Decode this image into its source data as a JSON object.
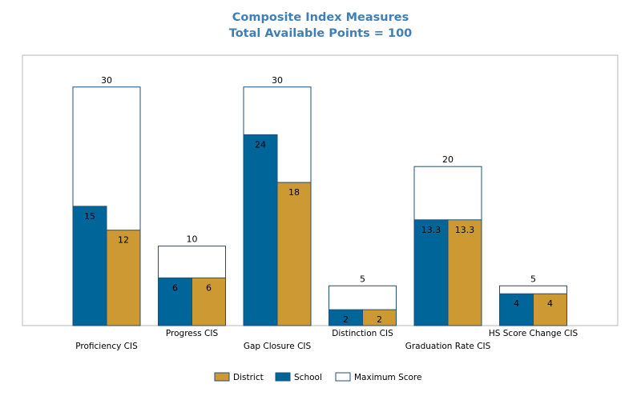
{
  "chart_data": {
    "type": "bar",
    "title": "Composite Index Measures",
    "subtitle": "Total Available Points = 100",
    "categories": [
      "Proficiency CIS",
      "Progress CIS",
      "Gap Closure CIS",
      "Distinction CIS",
      "Graduation Rate CIS",
      "HS Score Change CIS"
    ],
    "series": [
      {
        "name": "Maximum Score",
        "values": [
          30,
          10,
          30,
          5,
          20,
          5
        ],
        "value_labels": [
          "30",
          "10",
          "30",
          "5",
          "20",
          "5"
        ],
        "color": "#ffffff"
      },
      {
        "name": "School",
        "values": [
          15,
          6,
          24,
          2,
          13.3,
          4
        ],
        "value_labels": [
          "15",
          "6",
          "24",
          "2",
          "13.3",
          "4"
        ],
        "color": "#006699"
      },
      {
        "name": "District",
        "values": [
          12,
          6,
          18,
          2,
          13.3,
          4
        ],
        "value_labels": [
          "12",
          "6",
          "18",
          "2",
          "13.3",
          "4"
        ],
        "color": "#cc9933"
      }
    ],
    "ylim": [
      0,
      34
    ],
    "grid": false,
    "legend_position": "bottom",
    "legend_order": [
      "District",
      "School",
      "Maximum Score"
    ],
    "category_label_rows": [
      "low",
      "high",
      "low",
      "high",
      "low",
      "high"
    ]
  }
}
